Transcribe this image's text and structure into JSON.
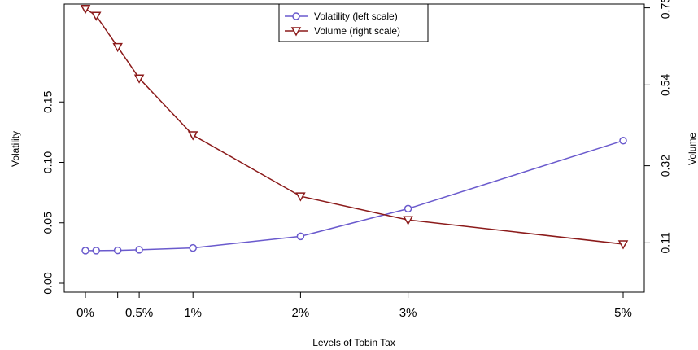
{
  "chart_data": {
    "type": "line",
    "xlabel": "Levels of Tobin Tax",
    "ylabel_left": "Volatility",
    "ylabel_right": "Volume",
    "x": [
      0,
      0.1,
      0.3,
      0.5,
      1,
      2,
      3,
      5
    ],
    "x_tick_values": [
      0,
      0.3,
      0.5,
      1,
      2,
      3,
      5
    ],
    "x_tick_labels": [
      "0%",
      "",
      "0.5%",
      "1%",
      "2%",
      "3%",
      "5%"
    ],
    "left_axis": {
      "ylim": [
        0,
        0.15
      ],
      "ticks": [
        0.0,
        0.05,
        0.1,
        0.15
      ],
      "tick_labels": [
        "0.00",
        "0.05",
        "0.10",
        "0.15"
      ]
    },
    "right_axis": {
      "ylim": [
        0,
        0.75
      ],
      "ticks": [
        0.11,
        0.32,
        0.54,
        0.75
      ],
      "tick_labels": [
        "0.11",
        "0.32",
        "0.54",
        "0.75"
      ]
    },
    "series": [
      {
        "name": "Volatility (left scale)",
        "axis": "left",
        "marker": "circle",
        "color": "#6A5ACD",
        "values": [
          0.027,
          0.027,
          0.0272,
          0.0277,
          0.0292,
          0.0388,
          0.0617,
          0.118
        ]
      },
      {
        "name": "Volume (right scale)",
        "axis": "right",
        "marker": "triangle-down",
        "color": "#8B1A1A",
        "values": [
          0.7475,
          0.7285,
          0.6436,
          0.558,
          0.4033,
          0.237,
          0.1724,
          0.1065
        ]
      }
    ],
    "legend_position": "top-center",
    "grid": false
  }
}
